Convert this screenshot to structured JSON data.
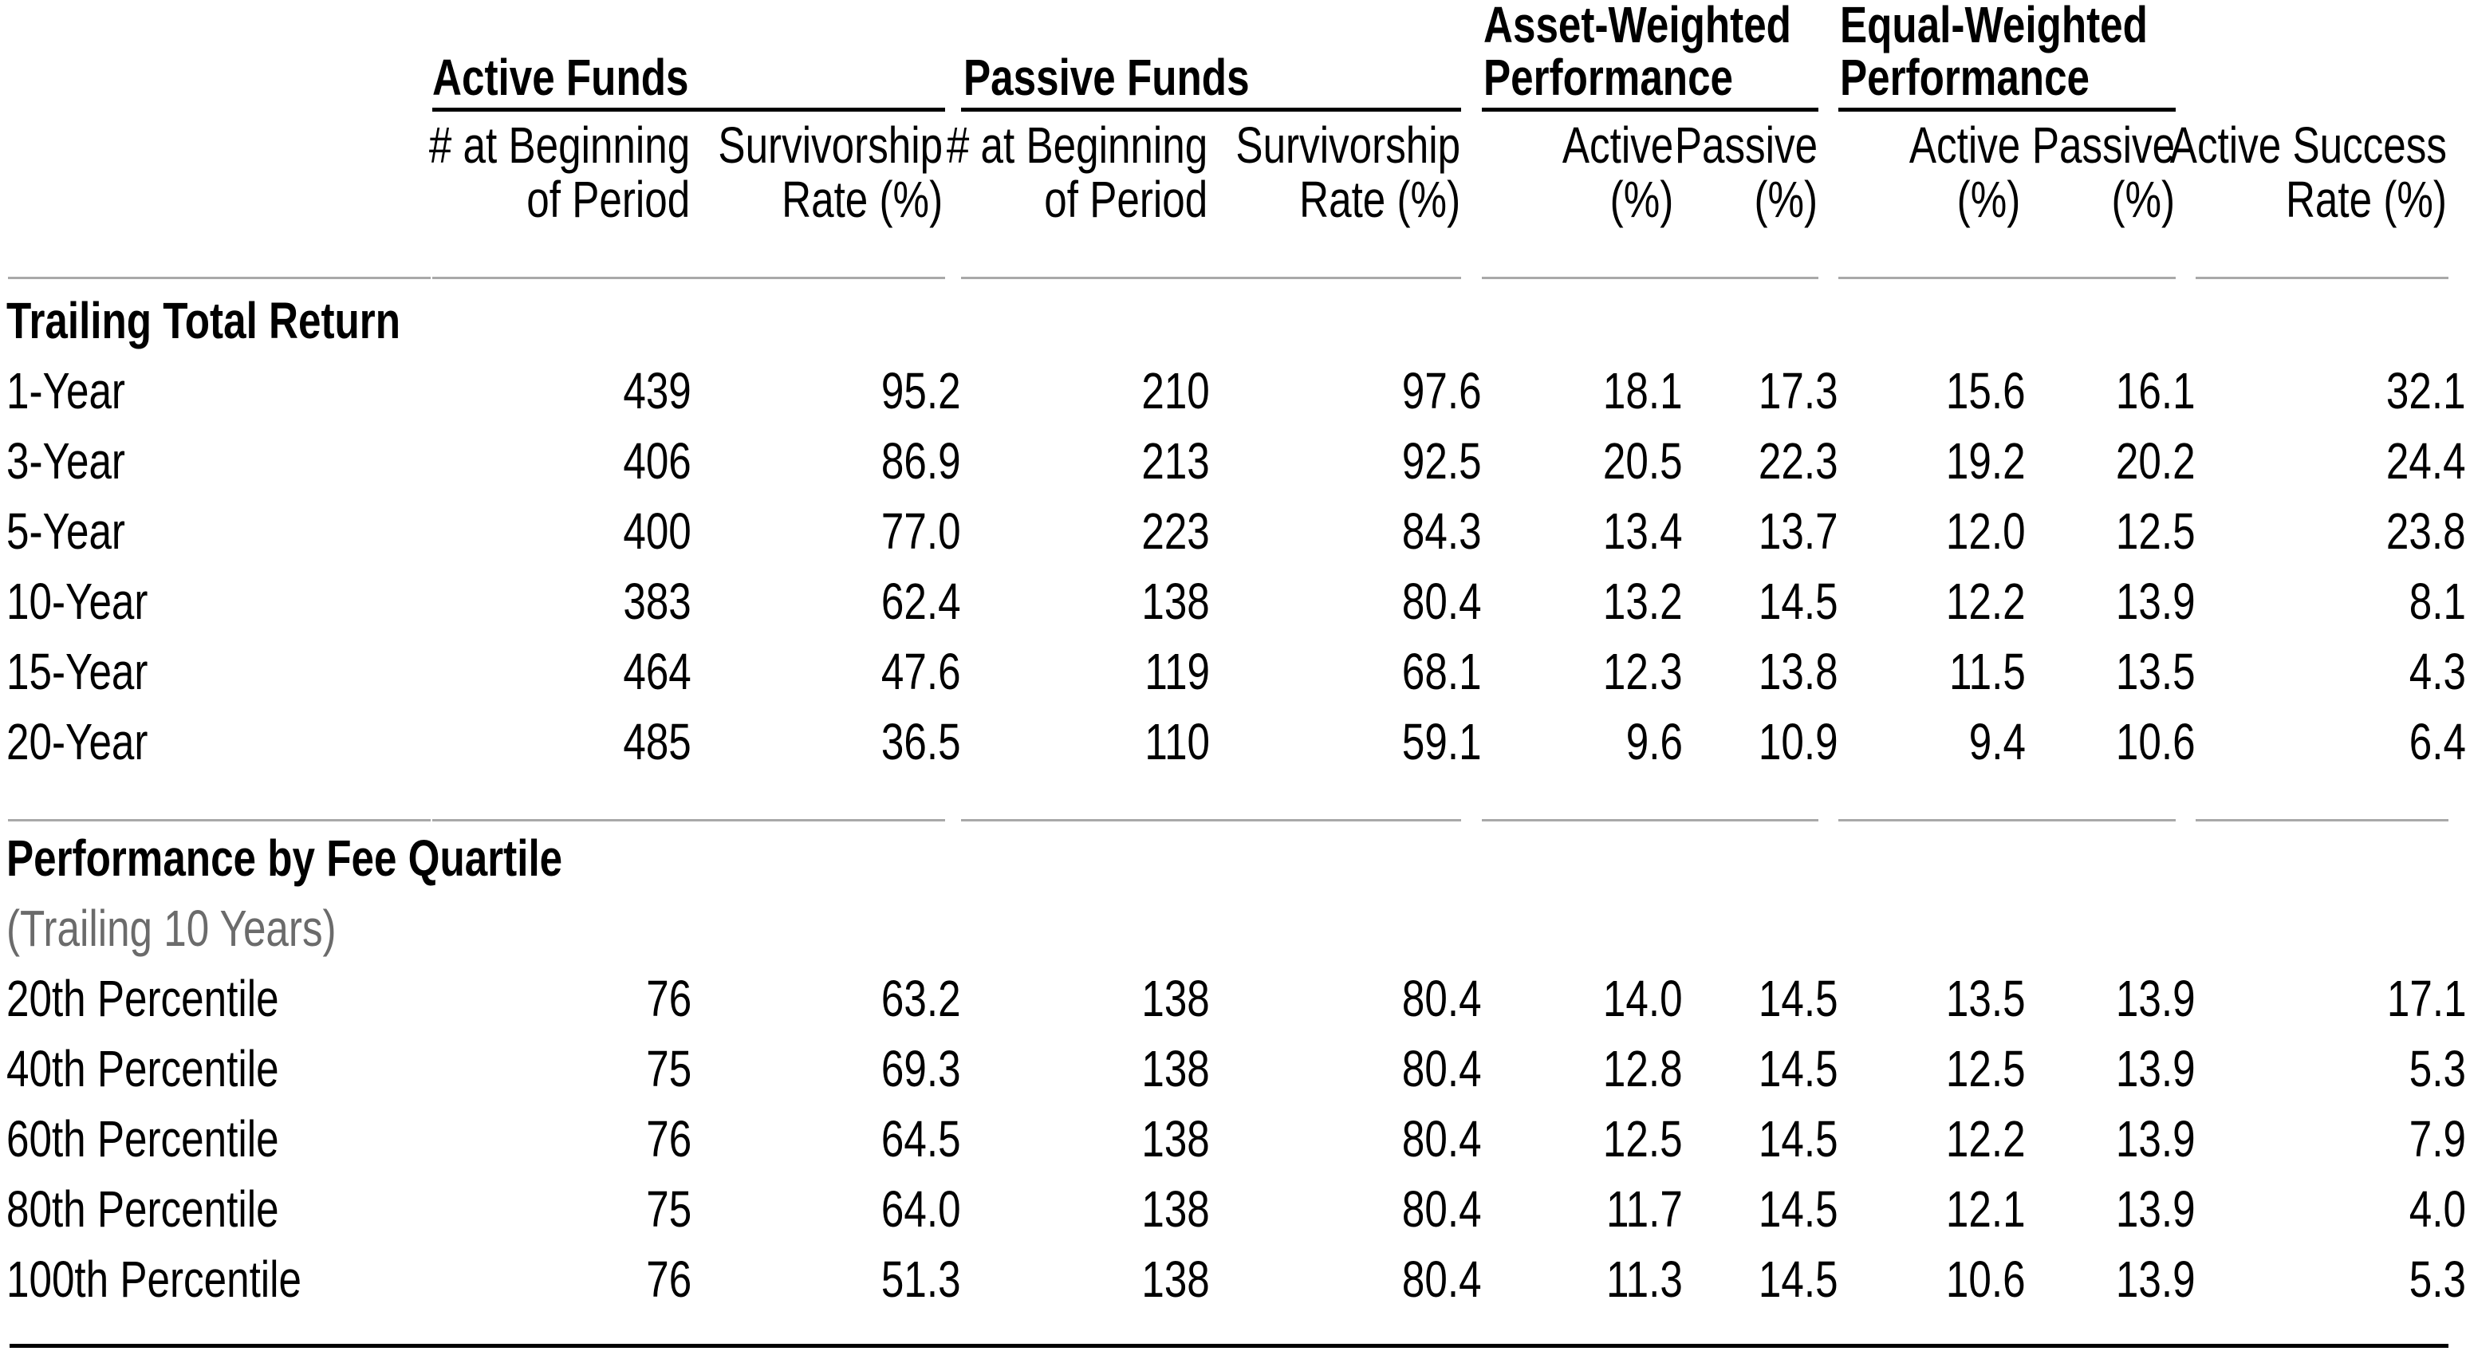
{
  "colors": {
    "text": "#000000",
    "subtitle_gray": "#6b6b6b",
    "rule_gray": "#a9a9a9",
    "rule_black": "#000000",
    "background": "#ffffff"
  },
  "chart_data": {
    "type": "table",
    "groups": [
      {
        "label": "Active Funds"
      },
      {
        "label": "Passive Funds"
      },
      {
        "label": "Asset-Weighted\nPerformance"
      },
      {
        "label": "Equal-Weighted\nPerformance"
      }
    ],
    "column_headers": [
      "# at Beginning\nof Period",
      "Survivorship\nRate (%)",
      "# at Beginning\nof Period",
      "Survivorship\nRate (%)",
      "Active\n(%)",
      "Passive\n(%)",
      "Active\n(%)",
      "Passive\n(%)",
      "Active Success\nRate (%)"
    ],
    "sections": [
      {
        "title": "Trailing Total Return",
        "subtitle": null,
        "rows": [
          {
            "label": "1-Year",
            "values": [
              "439",
              "95.2",
              "210",
              "97.6",
              "18.1",
              "17.3",
              "15.6",
              "16.1",
              "32.1"
            ]
          },
          {
            "label": "3-Year",
            "values": [
              "406",
              "86.9",
              "213",
              "92.5",
              "20.5",
              "22.3",
              "19.2",
              "20.2",
              "24.4"
            ]
          },
          {
            "label": "5-Year",
            "values": [
              "400",
              "77.0",
              "223",
              "84.3",
              "13.4",
              "13.7",
              "12.0",
              "12.5",
              "23.8"
            ]
          },
          {
            "label": "10-Year",
            "values": [
              "383",
              "62.4",
              "138",
              "80.4",
              "13.2",
              "14.5",
              "12.2",
              "13.9",
              "8.1"
            ]
          },
          {
            "label": "15-Year",
            "values": [
              "464",
              "47.6",
              "119",
              "68.1",
              "12.3",
              "13.8",
              "11.5",
              "13.5",
              "4.3"
            ]
          },
          {
            "label": "20-Year",
            "values": [
              "485",
              "36.5",
              "110",
              "59.1",
              "9.6",
              "10.9",
              "9.4",
              "10.6",
              "6.4"
            ]
          }
        ]
      },
      {
        "title": "Performance by Fee Quartile",
        "subtitle": "(Trailing 10 Years)",
        "rows": [
          {
            "label": "20th Percentile",
            "values": [
              "76",
              "63.2",
              "138",
              "80.4",
              "14.0",
              "14.5",
              "13.5",
              "13.9",
              "17.1"
            ]
          },
          {
            "label": "40th Percentile",
            "values": [
              "75",
              "69.3",
              "138",
              "80.4",
              "12.8",
              "14.5",
              "12.5",
              "13.9",
              "5.3"
            ]
          },
          {
            "label": "60th Percentile",
            "values": [
              "76",
              "64.5",
              "138",
              "80.4",
              "12.5",
              "14.5",
              "12.2",
              "13.9",
              "7.9"
            ]
          },
          {
            "label": "80th Percentile",
            "values": [
              "75",
              "64.0",
              "138",
              "80.4",
              "11.7",
              "14.5",
              "12.1",
              "13.9",
              "4.0"
            ]
          },
          {
            "label": "100th Percentile",
            "values": [
              "76",
              "51.3",
              "138",
              "80.4",
              "11.3",
              "14.5",
              "10.6",
              "13.9",
              "5.3"
            ]
          }
        ]
      }
    ]
  }
}
